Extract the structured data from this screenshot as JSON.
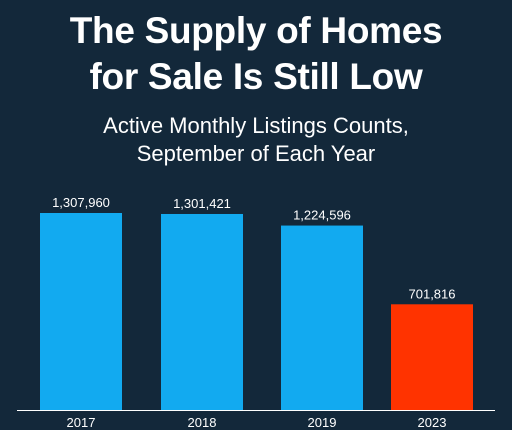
{
  "header": {
    "title_line1": "The Supply of Homes",
    "title_line2": "for Sale Is Still Low",
    "subtitle_line1": "Active Monthly Listings Counts,",
    "subtitle_line2": "September of Each Year"
  },
  "colors": {
    "background": "#13283a",
    "bar_default": "#12aaf0",
    "bar_highlight": "#ff3300",
    "axis": "#ffffff",
    "text": "#ffffff"
  },
  "chart_data": {
    "type": "bar",
    "title": "The Supply of Homes for Sale Is Still Low",
    "subtitle": "Active Monthly Listings Counts, September of Each Year",
    "xlabel": "",
    "ylabel": "",
    "categories": [
      "2017",
      "2018",
      "2019",
      "2023"
    ],
    "values": [
      1307960,
      1301421,
      1224596,
      701816
    ],
    "value_labels": [
      "1,307,960",
      "1,301,421",
      "1,224,596",
      "701,816"
    ],
    "highlight": [
      false,
      false,
      false,
      true
    ],
    "ylim": [
      0,
      1307960
    ],
    "grid": false,
    "legend": "none"
  }
}
